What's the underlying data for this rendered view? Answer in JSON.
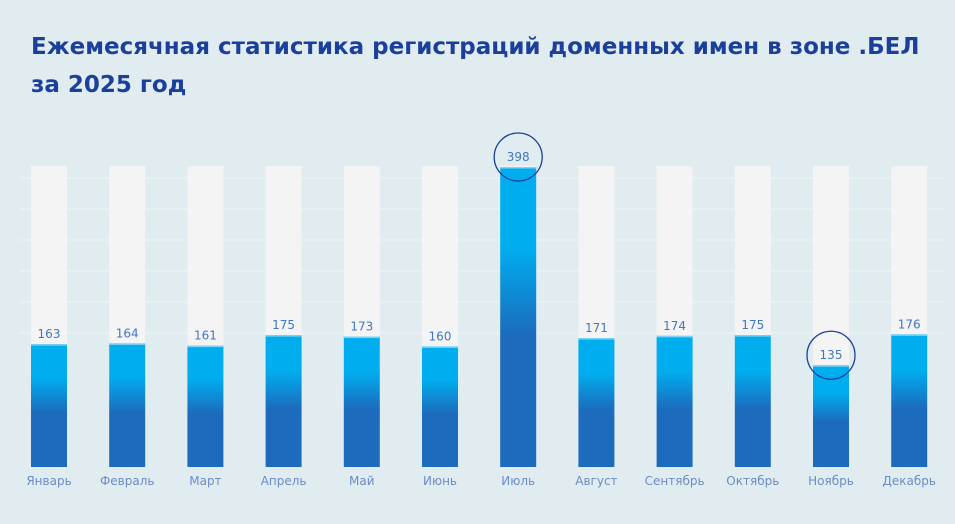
{
  "chart_data": {
    "type": "bar",
    "title": "Ежемесячная статистика регистраций доменных имен в зоне .БЕЛ за 2025 год",
    "categories": [
      "Январь",
      "Февраль",
      "Март",
      "Апрель",
      "Май",
      "Июнь",
      "Июль",
      "Август",
      "Сентябрь",
      "Октябрь",
      "Ноябрь",
      "Декабрь"
    ],
    "values": [
      163,
      164,
      161,
      175,
      173,
      160,
      398,
      171,
      174,
      175,
      135,
      176
    ],
    "highlighted": [
      "Июль",
      "Ноябрь"
    ],
    "ylim": [
      0,
      400
    ],
    "grid": true,
    "colors": {
      "bar_top": "#00aeef",
      "bar_bottom": "#1c6bbd",
      "track": "#f4f4f4",
      "highlight_ring": "#1b3f9b"
    }
  }
}
